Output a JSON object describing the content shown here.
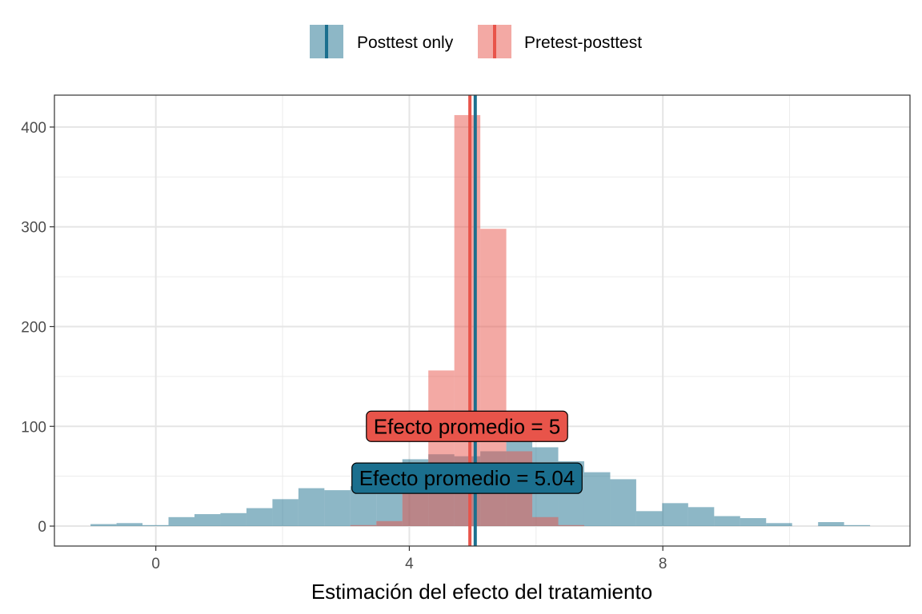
{
  "chart_data": {
    "type": "bar",
    "subtype": "overlapping-histogram",
    "title": "",
    "xlabel": "Estimación del efecto del tratamiento",
    "ylabel": "",
    "xlim": [
      -1.6,
      11.9
    ],
    "ylim": [
      -20,
      432
    ],
    "x_ticks": [
      0,
      4,
      8
    ],
    "x_tick_labels": [
      "0",
      "4",
      "8"
    ],
    "y_ticks": [
      0,
      100,
      200,
      300,
      400
    ],
    "y_tick_labels": [
      "0",
      "100",
      "200",
      "300",
      "400"
    ],
    "grid": true,
    "legend_position": "top",
    "bin_width": 0.41,
    "series": [
      {
        "name": "Posttest only",
        "color": "#1b6f8e",
        "fill_opacity": 0.5,
        "mean": 5.04,
        "bins": [
          {
            "x0": -1.03,
            "x1": -0.62,
            "count": 2
          },
          {
            "x0": -0.62,
            "x1": -0.21,
            "count": 3
          },
          {
            "x0": -0.21,
            "x1": 0.2,
            "count": 1
          },
          {
            "x0": 0.2,
            "x1": 0.61,
            "count": 9
          },
          {
            "x0": 0.61,
            "x1": 1.02,
            "count": 12
          },
          {
            "x0": 1.02,
            "x1": 1.43,
            "count": 13
          },
          {
            "x0": 1.43,
            "x1": 1.84,
            "count": 18
          },
          {
            "x0": 1.84,
            "x1": 2.25,
            "count": 27
          },
          {
            "x0": 2.25,
            "x1": 2.66,
            "count": 38
          },
          {
            "x0": 2.66,
            "x1": 3.07,
            "count": 36
          },
          {
            "x0": 3.07,
            "x1": 3.48,
            "count": 40
          },
          {
            "x0": 3.48,
            "x1": 3.89,
            "count": 52
          },
          {
            "x0": 3.89,
            "x1": 4.3,
            "count": 67
          },
          {
            "x0": 4.3,
            "x1": 4.71,
            "count": 72
          },
          {
            "x0": 4.71,
            "x1": 5.12,
            "count": 70
          },
          {
            "x0": 5.12,
            "x1": 5.53,
            "count": 75
          },
          {
            "x0": 5.53,
            "x1": 5.94,
            "count": 88
          },
          {
            "x0": 5.94,
            "x1": 6.35,
            "count": 79
          },
          {
            "x0": 6.35,
            "x1": 6.76,
            "count": 65
          },
          {
            "x0": 6.76,
            "x1": 7.17,
            "count": 54
          },
          {
            "x0": 7.17,
            "x1": 7.58,
            "count": 47
          },
          {
            "x0": 7.58,
            "x1": 7.99,
            "count": 15
          },
          {
            "x0": 7.99,
            "x1": 8.4,
            "count": 23
          },
          {
            "x0": 8.4,
            "x1": 8.81,
            "count": 19
          },
          {
            "x0": 8.81,
            "x1": 9.22,
            "count": 10
          },
          {
            "x0": 9.22,
            "x1": 9.63,
            "count": 8
          },
          {
            "x0": 9.63,
            "x1": 10.04,
            "count": 3
          },
          {
            "x0": 10.04,
            "x1": 10.45,
            "count": 0
          },
          {
            "x0": 10.45,
            "x1": 10.86,
            "count": 4
          },
          {
            "x0": 10.86,
            "x1": 11.27,
            "count": 1
          }
        ]
      },
      {
        "name": "Pretest-posttest",
        "color": "#e8544a",
        "fill_opacity": 0.5,
        "mean": 5,
        "bins": [
          {
            "x0": 3.07,
            "x1": 3.48,
            "count": 1
          },
          {
            "x0": 3.48,
            "x1": 3.89,
            "count": 5
          },
          {
            "x0": 3.89,
            "x1": 4.3,
            "count": 56
          },
          {
            "x0": 4.3,
            "x1": 4.71,
            "count": 156
          },
          {
            "x0": 4.71,
            "x1": 5.12,
            "count": 412
          },
          {
            "x0": 5.12,
            "x1": 5.53,
            "count": 298
          },
          {
            "x0": 5.53,
            "x1": 5.94,
            "count": 75
          },
          {
            "x0": 5.94,
            "x1": 6.35,
            "count": 9
          },
          {
            "x0": 6.35,
            "x1": 6.76,
            "count": 1
          }
        ]
      }
    ],
    "annotations": [
      {
        "text": "Efecto promedio = 5",
        "x": 4.91,
        "y": 100,
        "color": "#e8544a"
      },
      {
        "text": "Efecto promedio = 5.04",
        "x": 4.91,
        "y": 48,
        "color": "#1b6f8e"
      }
    ]
  }
}
